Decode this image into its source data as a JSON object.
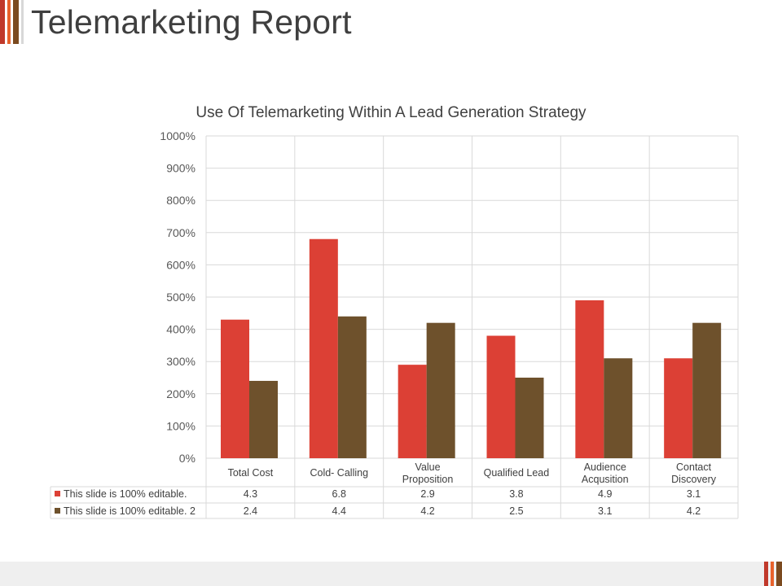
{
  "slide": {
    "title": "Telemarketing Report",
    "accent_colors": [
      "#c0392b",
      "#e8622c",
      "#7b4a1f",
      "#d8d8d8"
    ]
  },
  "chart_data": {
    "type": "bar",
    "title": "Use Of Telemarketing Within A Lead Generation Strategy",
    "categories": [
      [
        "Total Cost"
      ],
      [
        "Cold- Calling"
      ],
      [
        "Value",
        "Proposition"
      ],
      [
        "Qualified Lead"
      ],
      [
        "Audience",
        "Acqusition"
      ],
      [
        "Contact",
        "Discovery"
      ]
    ],
    "series": [
      {
        "name": "This slide is 100% editable.",
        "color": "#dc4035",
        "values": [
          4.3,
          6.8,
          2.9,
          3.8,
          4.9,
          3.1
        ],
        "labels": [
          "4.3",
          "6.8",
          "2.9",
          "3.8",
          "4.9",
          "3.1"
        ]
      },
      {
        "name": "This slide is 100% editable. 2",
        "color": "#6e512c",
        "values": [
          2.4,
          4.4,
          4.2,
          2.5,
          3.1,
          4.2
        ],
        "labels": [
          "2.4",
          "4.4",
          "4.2",
          "2.5",
          "3.1",
          "4.2"
        ]
      }
    ],
    "ylim": [
      0,
      10
    ],
    "y_ticks": [
      "0%",
      "100%",
      "200%",
      "300%",
      "400%",
      "500%",
      "600%",
      "700%",
      "800%",
      "900%",
      "1000%"
    ],
    "grid": true,
    "legend": "data-table-below"
  }
}
